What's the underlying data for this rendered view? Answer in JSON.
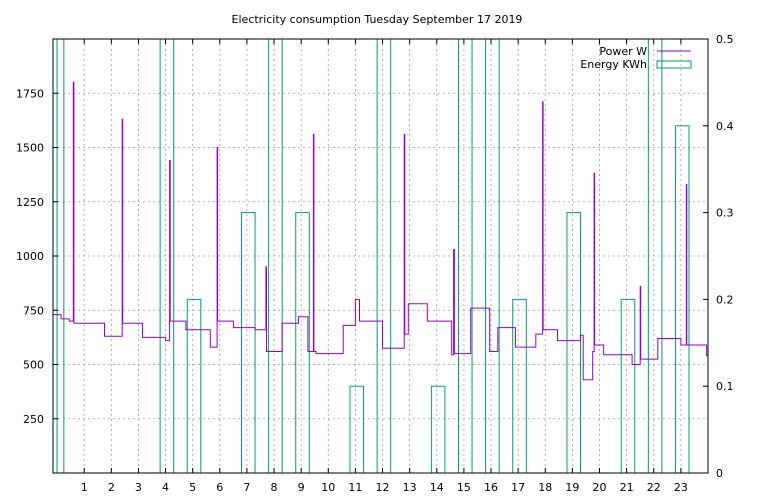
{
  "chart_data": {
    "type": "line",
    "title": "Electricity consumption Tuesday September 17 2019",
    "xlabel": "",
    "ylabel": "",
    "xlim": [
      -0.15,
      24
    ],
    "ylim": [
      0,
      2000
    ],
    "y2lim": [
      0,
      0.5
    ],
    "x_ticks": [
      1,
      2,
      3,
      4,
      5,
      6,
      7,
      8,
      9,
      10,
      11,
      12,
      13,
      14,
      15,
      16,
      17,
      18,
      19,
      20,
      21,
      22,
      23
    ],
    "y_ticks": [
      250,
      500,
      750,
      1000,
      1250,
      1500,
      1750
    ],
    "y2_ticks": [
      0,
      0.1,
      0.2,
      0.3,
      0.4,
      0.5
    ],
    "grid": true,
    "legend_position": "top-right",
    "colors": {
      "power": "#9400d3",
      "energy": "#009e73"
    },
    "series": [
      {
        "name": "Power W",
        "axis": "y",
        "style": "steps",
        "points": [
          [
            -0.15,
            730
          ],
          [
            0.15,
            710
          ],
          [
            0.45,
            700
          ],
          [
            0.55,
            700
          ],
          [
            0.6,
            1800
          ],
          [
            0.62,
            690
          ],
          [
            1.7,
            690
          ],
          [
            1.75,
            630
          ],
          [
            2.35,
            630
          ],
          [
            2.4,
            1630
          ],
          [
            2.42,
            690
          ],
          [
            3.1,
            690
          ],
          [
            3.15,
            625
          ],
          [
            3.95,
            625
          ],
          [
            4.0,
            610
          ],
          [
            4.1,
            610
          ],
          [
            4.15,
            1440
          ],
          [
            4.17,
            700
          ],
          [
            4.7,
            700
          ],
          [
            4.75,
            660
          ],
          [
            5.6,
            660
          ],
          [
            5.65,
            580
          ],
          [
            5.85,
            580
          ],
          [
            5.9,
            1500
          ],
          [
            5.92,
            700
          ],
          [
            6.45,
            700
          ],
          [
            6.5,
            670
          ],
          [
            7.25,
            670
          ],
          [
            7.3,
            660
          ],
          [
            7.65,
            660
          ],
          [
            7.7,
            950
          ],
          [
            7.72,
            560
          ],
          [
            8.25,
            560
          ],
          [
            8.3,
            690
          ],
          [
            8.85,
            690
          ],
          [
            8.9,
            720
          ],
          [
            9.2,
            720
          ],
          [
            9.25,
            560
          ],
          [
            9.4,
            560
          ],
          [
            9.45,
            1560
          ],
          [
            9.47,
            560
          ],
          [
            9.55,
            550
          ],
          [
            10.5,
            550
          ],
          [
            10.55,
            680
          ],
          [
            10.95,
            680
          ],
          [
            11.0,
            800
          ],
          [
            11.1,
            800
          ],
          [
            11.15,
            700
          ],
          [
            11.95,
            700
          ],
          [
            12.0,
            575
          ],
          [
            12.75,
            575
          ],
          [
            12.8,
            1560
          ],
          [
            12.82,
            640
          ],
          [
            12.9,
            640
          ],
          [
            12.95,
            780
          ],
          [
            13.6,
            780
          ],
          [
            13.65,
            700
          ],
          [
            14.5,
            700
          ],
          [
            14.55,
            545
          ],
          [
            14.6,
            545
          ],
          [
            14.62,
            1030
          ],
          [
            14.65,
            550
          ],
          [
            15.2,
            550
          ],
          [
            15.25,
            760
          ],
          [
            15.9,
            760
          ],
          [
            15.95,
            560
          ],
          [
            16.2,
            560
          ],
          [
            16.25,
            670
          ],
          [
            16.85,
            670
          ],
          [
            16.9,
            580
          ],
          [
            17.6,
            580
          ],
          [
            17.65,
            640
          ],
          [
            17.85,
            640
          ],
          [
            17.9,
            1710
          ],
          [
            17.92,
            660
          ],
          [
            18.4,
            660
          ],
          [
            18.45,
            610
          ],
          [
            19.25,
            610
          ],
          [
            19.3,
            635
          ],
          [
            19.35,
            635
          ],
          [
            19.4,
            430
          ],
          [
            19.7,
            430
          ],
          [
            19.75,
            560
          ],
          [
            19.8,
            1380
          ],
          [
            19.82,
            590
          ],
          [
            20.1,
            590
          ],
          [
            20.15,
            545
          ],
          [
            21.15,
            545
          ],
          [
            21.2,
            500
          ],
          [
            21.45,
            500
          ],
          [
            21.5,
            860
          ],
          [
            21.52,
            525
          ],
          [
            22.1,
            525
          ],
          [
            22.15,
            620
          ],
          [
            22.95,
            620
          ],
          [
            23.0,
            590
          ],
          [
            23.15,
            590
          ],
          [
            23.2,
            1330
          ],
          [
            23.22,
            590
          ],
          [
            23.9,
            590
          ],
          [
            23.95,
            540
          ],
          [
            24,
            540
          ]
        ]
      },
      {
        "name": "Energy KWh",
        "axis": "y2",
        "style": "boxes",
        "bars": [
          [
            0.0,
            0.25,
            0.5
          ],
          [
            3.8,
            4.3,
            0.5
          ],
          [
            4.8,
            5.3,
            0.2
          ],
          [
            6.8,
            7.3,
            0.3
          ],
          [
            7.8,
            8.3,
            0.5
          ],
          [
            8.8,
            9.3,
            0.3
          ],
          [
            10.8,
            11.3,
            0.1
          ],
          [
            11.8,
            12.3,
            0.5
          ],
          [
            13.8,
            14.3,
            0.1
          ],
          [
            14.8,
            15.3,
            0.5
          ],
          [
            15.8,
            16.3,
            0.5
          ],
          [
            16.8,
            17.3,
            0.2
          ],
          [
            18.8,
            19.3,
            0.3
          ],
          [
            20.8,
            21.3,
            0.2
          ],
          [
            21.8,
            22.3,
            0.5
          ],
          [
            22.8,
            23.3,
            0.4
          ]
        ]
      }
    ]
  }
}
